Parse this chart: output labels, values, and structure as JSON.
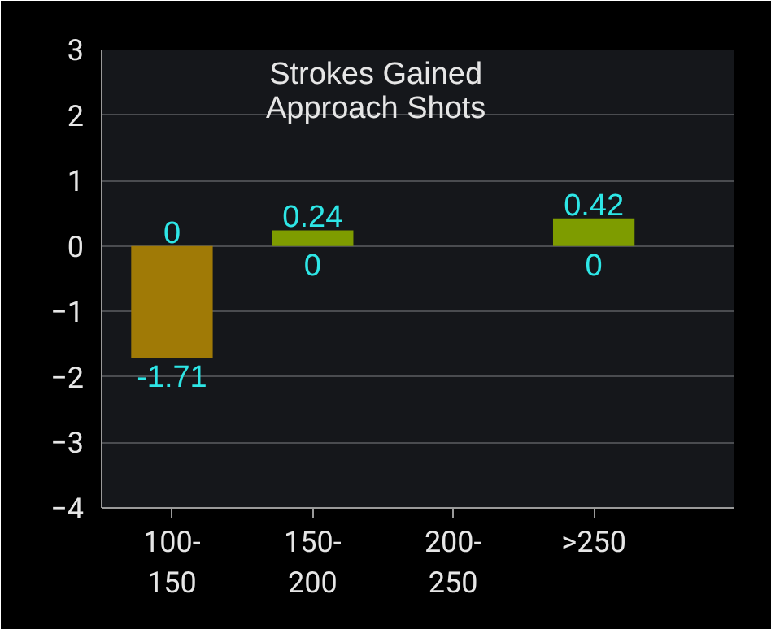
{
  "chart_data": {
    "type": "bar",
    "title": "Strokes Gained\nApproach Shots",
    "categories": [
      "100-150",
      "150-200",
      "200-250",
      ">250"
    ],
    "stacked": true,
    "series": [
      {
        "color": "#7e9c00",
        "values": [
          0,
          0.24,
          null,
          0.42
        ]
      },
      {
        "color": "#a07a06",
        "values": [
          -1.71,
          0,
          null,
          0
        ]
      }
    ],
    "ylim": [
      -4,
      3
    ],
    "yticks": [
      -4,
      -3,
      -2,
      -1,
      0,
      1,
      2,
      3
    ],
    "grid": "y",
    "data_labels": true
  }
}
